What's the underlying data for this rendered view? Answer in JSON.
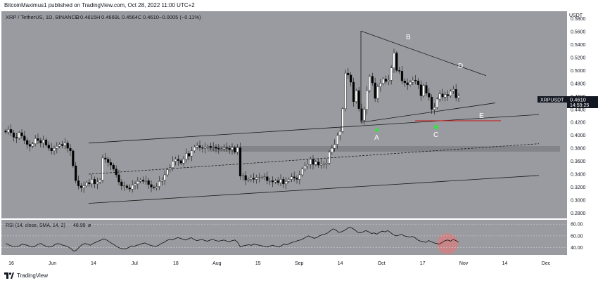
{
  "header": {
    "published_text": "BitcoinMaximus1 published on TradingView.com, Oct 28, 2022 11:00 UTC+2"
  },
  "legend": {
    "symbol_text": "XRP / TetherUS, 1D, BINANCE",
    "o_label": "O",
    "o_value": "0.4615",
    "h_label": "H",
    "h_value": "0.4669",
    "l_label": "L",
    "l_value": "0.4564",
    "c_label": "C",
    "c_value": "0.4610",
    "change_text": "−0.0005 (−0.11%)"
  },
  "price_axis": {
    "currency": "USDT",
    "symbol_tag": "XRPUSDT",
    "last_price": "0.4610",
    "countdown": "14:59:25"
  },
  "rsi": {
    "label": "RSI (14, close, SMA, 14, 2)",
    "value": "48.99",
    "extra": "ø"
  },
  "annotations": {
    "A": "A",
    "B": "B",
    "C": "C",
    "D": "D",
    "E": "E"
  },
  "footer": {
    "brand": "TradingView"
  },
  "colors": {
    "chart_bg": "#9a9ba0",
    "up_candle": "#ffffff",
    "down_candle": "#000000",
    "support_line": "#c62828",
    "marker_green": "#3ddc4a",
    "rsi_highlight": "#e07a7a",
    "band": "#7f8085"
  },
  "chart_data": [
    {
      "type": "candlestick",
      "title": "XRP / TetherUS, 1D, BINANCE",
      "y_ticks": [
        "0.5800",
        "0.5600",
        "0.5400",
        "0.5200",
        "0.5000",
        "0.4800",
        "0.4600",
        "0.4400",
        "0.4200",
        "0.4000",
        "0.3800",
        "0.3600",
        "0.3400",
        "0.3200",
        "0.3000",
        "0.2800"
      ],
      "x_ticks": [
        "16",
        "Jun",
        "14",
        "Jul",
        "18",
        "Aug",
        "15",
        "Sep",
        "14",
        "Oct",
        "17",
        "Nov",
        "14",
        "Dec"
      ],
      "ylim": [
        0.275,
        0.585
      ],
      "close_series": [
        0.405,
        0.409,
        0.404,
        0.397,
        0.396,
        0.404,
        0.399,
        0.392,
        0.386,
        0.383,
        0.387,
        0.395,
        0.392,
        0.388,
        0.393,
        0.385,
        0.38,
        0.376,
        0.38,
        0.383,
        0.386,
        0.384,
        0.388,
        0.38,
        0.376,
        0.353,
        0.33,
        0.322,
        0.319,
        0.322,
        0.327,
        0.325,
        0.332,
        0.325,
        0.328,
        0.331,
        0.365,
        0.363,
        0.358,
        0.354,
        0.348,
        0.339,
        0.328,
        0.322,
        0.322,
        0.319,
        0.317,
        0.323,
        0.325,
        0.329,
        0.331,
        0.329,
        0.33,
        0.324,
        0.32,
        0.319,
        0.321,
        0.329,
        0.331,
        0.339,
        0.347,
        0.35,
        0.36,
        0.363,
        0.361,
        0.357,
        0.363,
        0.372,
        0.368,
        0.376,
        0.382,
        0.384,
        0.381,
        0.38,
        0.382,
        0.383,
        0.381,
        0.382,
        0.38,
        0.379,
        0.379,
        0.381,
        0.38,
        0.378,
        0.381,
        0.374,
        0.381,
        0.337,
        0.338,
        0.331,
        0.332,
        0.334,
        0.332,
        0.335,
        0.335,
        0.335,
        0.336,
        0.33,
        0.33,
        0.328,
        0.33,
        0.327,
        0.332,
        0.325,
        0.329,
        0.332,
        0.336,
        0.334,
        0.332,
        0.339,
        0.348,
        0.353,
        0.355,
        0.363,
        0.355,
        0.359,
        0.354,
        0.356,
        0.356,
        0.357,
        0.374,
        0.38,
        0.386,
        0.4,
        0.406,
        0.441,
        0.496,
        0.493,
        0.482,
        0.452,
        0.469,
        0.441,
        0.423,
        0.44,
        0.469,
        0.491,
        0.481,
        0.457,
        0.475,
        0.48,
        0.487,
        0.483,
        0.485,
        0.504,
        0.527,
        0.5,
        0.499,
        0.484,
        0.481,
        0.478,
        0.482,
        0.485,
        0.484,
        0.478,
        0.461,
        0.477,
        0.465,
        0.459,
        0.44,
        0.443,
        0.456,
        0.464,
        0.459,
        0.463,
        0.461,
        0.468,
        0.471,
        0.458,
        0.461
      ],
      "overlays": {
        "channel_upper": [
          [
            0.388,
            0.432
          ]
        ],
        "channel_lower": [
          [
            0.295,
            0.338
          ]
        ],
        "channel_mid": [
          [
            0.34,
            0.387
          ]
        ],
        "triangle_upper": [
          [
            0.561,
            0.492
          ]
        ],
        "triangle_lower": [
          [
            0.42,
            0.45
          ]
        ],
        "support_level": 0.4225,
        "resistance_band": [
          0.383,
          0.39
        ]
      },
      "labels": [
        "A",
        "B",
        "C",
        "D",
        "E"
      ]
    },
    {
      "type": "line",
      "title": "RSI (14, close, SMA, 14, 2)",
      "y_ticks": [
        "80.00",
        "60.00",
        "40.00"
      ],
      "ylim": [
        30,
        85
      ],
      "values": [
        47,
        45,
        43,
        42,
        42,
        43,
        46,
        45,
        44,
        42,
        41,
        43,
        46,
        47,
        44,
        42,
        41,
        42,
        45,
        47,
        46,
        44,
        43,
        41,
        38,
        34,
        36,
        41,
        45,
        47,
        46,
        44,
        47,
        49,
        51,
        53,
        55,
        53,
        50,
        47,
        44,
        41,
        39,
        38,
        38,
        40,
        43,
        42,
        44,
        45,
        47,
        48,
        46,
        44,
        43,
        42,
        44,
        47,
        49,
        52,
        54,
        53,
        55,
        57,
        56,
        54,
        53,
        55,
        57,
        54,
        52,
        53,
        54,
        52,
        51,
        53,
        54,
        52,
        51,
        52,
        53,
        51,
        50,
        52,
        53,
        49,
        41,
        43,
        44,
        45,
        44,
        46,
        45,
        44,
        43,
        42,
        41,
        43,
        44,
        42,
        41,
        43,
        46,
        45,
        47,
        49,
        50,
        52,
        53,
        55,
        58,
        60,
        58,
        56,
        57,
        60,
        62,
        63,
        65,
        69,
        72,
        70,
        66,
        67,
        69,
        72,
        75,
        73,
        70,
        66,
        65,
        67,
        69,
        67,
        64,
        65,
        63,
        66,
        68,
        67,
        69,
        66,
        62,
        60,
        61,
        63,
        60,
        59,
        58,
        59,
        57,
        53,
        51,
        50,
        49,
        52,
        50,
        48,
        47,
        46,
        49,
        52,
        53,
        51,
        54,
        52,
        49
      ]
    }
  ]
}
